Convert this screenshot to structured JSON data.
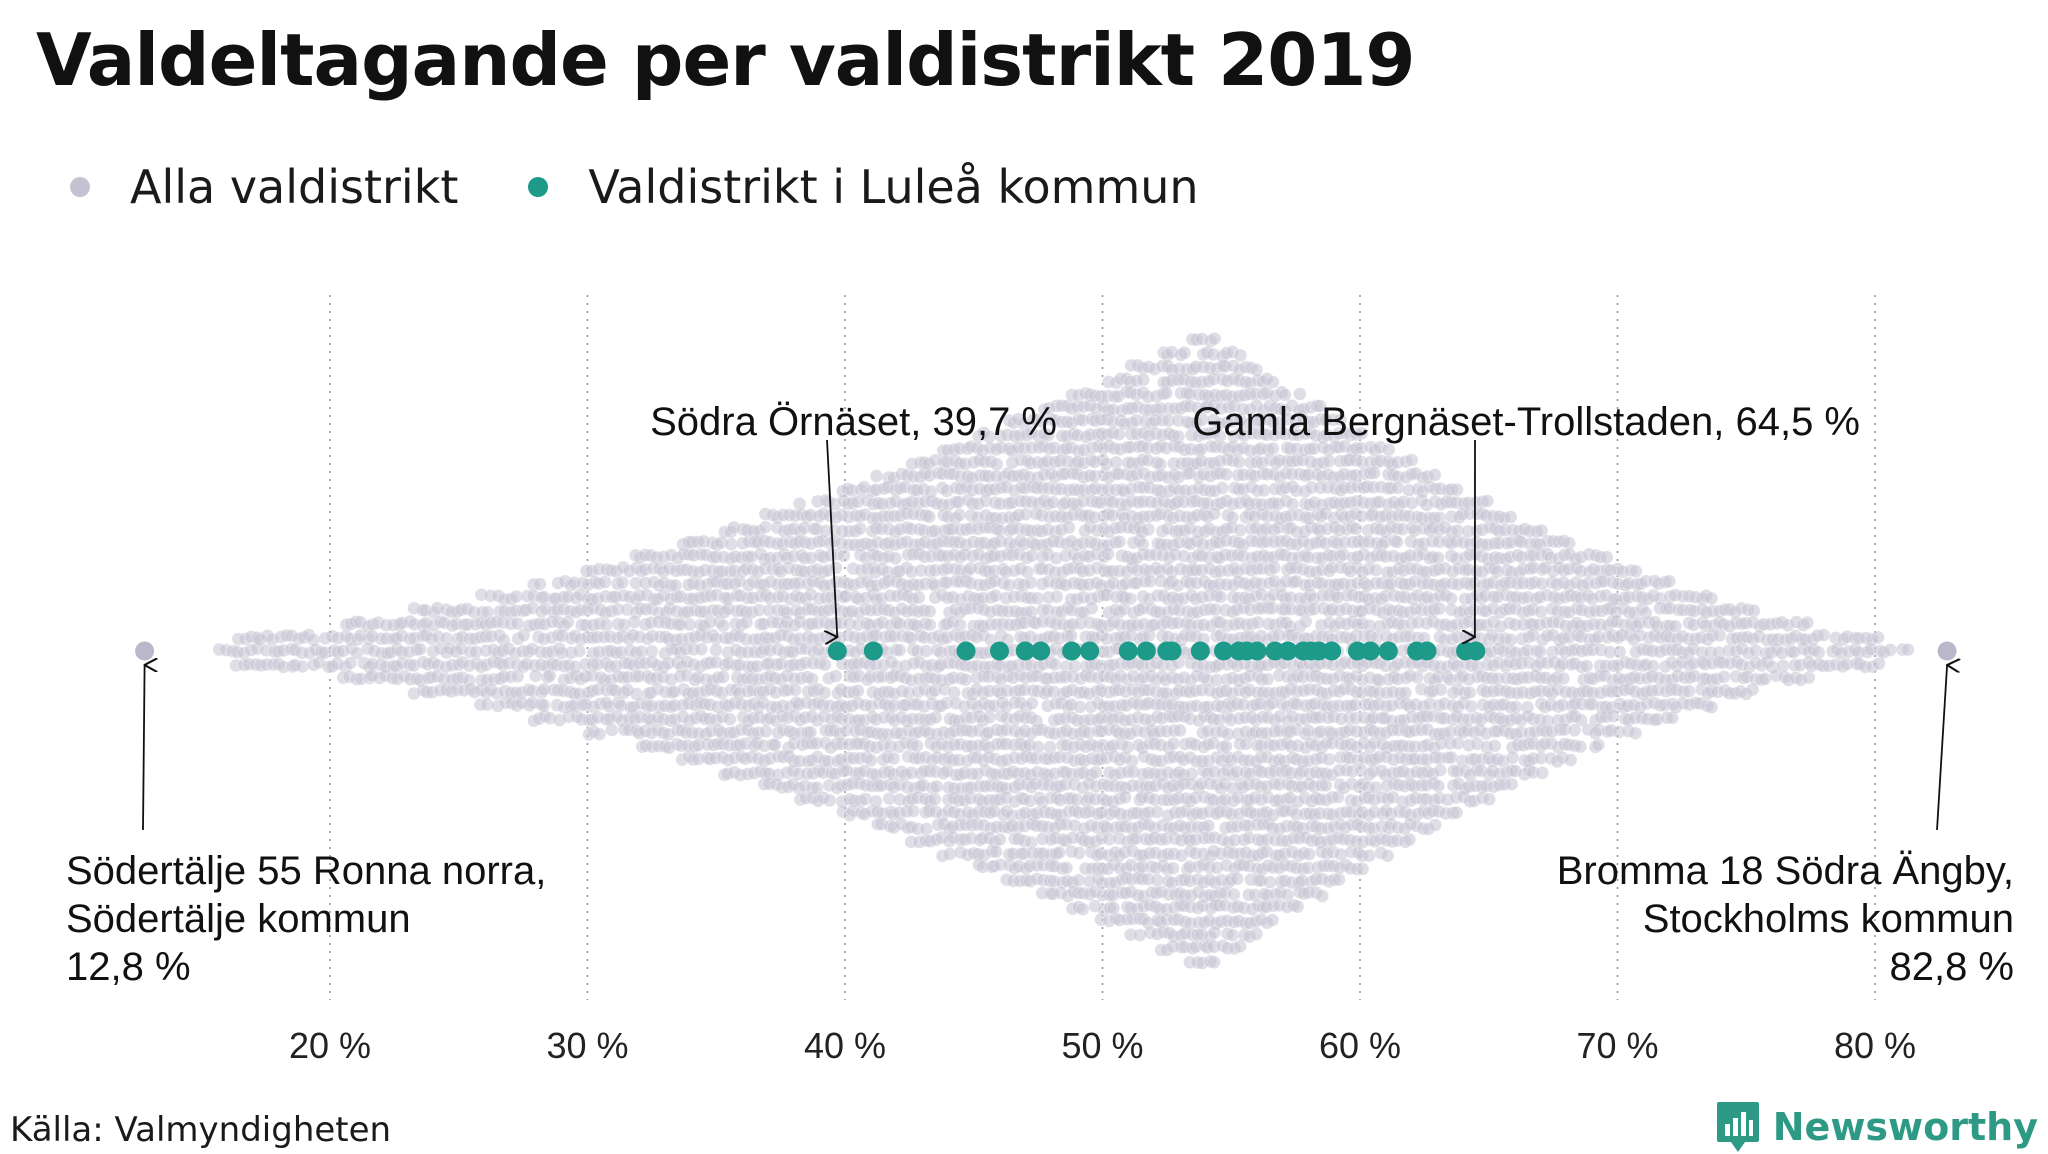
{
  "title": "Valdeltagande per valdistrikt 2019",
  "legend": [
    {
      "label": "Alla valdistrikt",
      "color": "#c4c3d2"
    },
    {
      "label": "Valdistrikt i Luleå kommun",
      "color": "#1d9a8a"
    }
  ],
  "source": "Källa: Valmyndigheten",
  "brand": {
    "name": "Newsworthy",
    "icon": "bar-chart-speech-bubble-icon",
    "color": "#2e9a86"
  },
  "chart_data": {
    "type": "scatter",
    "x_unit": "percent",
    "xlim": [
      10,
      84
    ],
    "x_ticks": [
      20,
      30,
      40,
      50,
      60,
      70,
      80
    ],
    "x_tick_labels": [
      "20 %",
      "30 %",
      "40 %",
      "50 %",
      "60 %",
      "70 %",
      "80 %"
    ],
    "grid": "vertical-dotted",
    "legend_position": "top-left",
    "series": [
      {
        "name": "Alla valdistrikt",
        "color": "#c4c3d2",
        "distribution": "beeswarm",
        "min": 12.8,
        "max": 82.8,
        "peak": 54
      },
      {
        "name": "Valdistrikt i Luleå kommun",
        "color": "#1d9a8a",
        "values": [
          39.7,
          41.1,
          44.7,
          46.0,
          47.0,
          47.6,
          48.8,
          49.5,
          51.0,
          51.7,
          52.5,
          52.7,
          53.8,
          54.7,
          55.3,
          55.6,
          56.0,
          56.7,
          57.2,
          57.8,
          58.1,
          58.4,
          58.9,
          59.9,
          60.4,
          61.1,
          62.2,
          62.6,
          64.1,
          64.5
        ]
      }
    ],
    "annotations": [
      {
        "lines": [
          "Södra Örnäset, 39,7 %"
        ],
        "x": 39.7,
        "anchor": "end"
      },
      {
        "lines": [
          "Gamla Bergnäset-Trollstaden, 64,5 %"
        ],
        "x": 64.5,
        "anchor": "end"
      },
      {
        "lines": [
          "Södertälje 55 Ronna norra,",
          "Södertälje kommun",
          "12,8 %"
        ],
        "x": 12.8,
        "anchor": "start"
      },
      {
        "lines": [
          "Bromma 18 Södra Ängby,",
          "Stockholms kommun",
          "82,8 %"
        ],
        "x": 82.8,
        "anchor": "end"
      }
    ]
  }
}
